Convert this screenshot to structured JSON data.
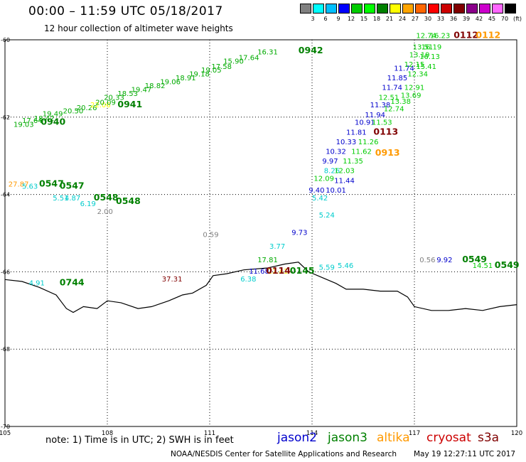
{
  "header": {
    "title": "00:00 – 11:59 UTC 05/18/2017",
    "subtitle": "12 hour collection of altimeter wave heights"
  },
  "legend_scale": {
    "unit": "(ft)",
    "colors": [
      "#808080",
      "#00ffff",
      "#00bfff",
      "#0000ff",
      "#00cc00",
      "#00ff00",
      "#008000",
      "#ffff00",
      "#ffa500",
      "#ff6600",
      "#ff0000",
      "#cc0000",
      "#800000",
      "#8b008b",
      "#cc00cc",
      "#ff66ff",
      "#000000"
    ],
    "labels": [
      "3",
      "6",
      "9",
      "12",
      "15",
      "18",
      "21",
      "24",
      "27",
      "30",
      "33",
      "36",
      "39",
      "42",
      "45",
      "70"
    ]
  },
  "axes": {
    "lon_labels": [
      "105",
      "108",
      "111",
      "114",
      "117",
      "120"
    ],
    "lat_labels": [
      "-60",
      "-62",
      "-64",
      "-66",
      "-68",
      "-70"
    ]
  },
  "map": {
    "lon_range": [
      105,
      120
    ],
    "lat_range": [
      -60,
      -70
    ],
    "coastline": [
      [
        105,
        -66.2
      ],
      [
        105.5,
        -66.25
      ],
      [
        106,
        -66.4
      ],
      [
        106.5,
        -66.6
      ],
      [
        106.8,
        -66.95
      ],
      [
        107,
        -67.05
      ],
      [
        107.3,
        -66.9
      ],
      [
        107.7,
        -66.95
      ],
      [
        108,
        -66.75
      ],
      [
        108.4,
        -66.8
      ],
      [
        108.9,
        -66.95
      ],
      [
        109.3,
        -66.9
      ],
      [
        109.8,
        -66.75
      ],
      [
        110.2,
        -66.6
      ],
      [
        110.5,
        -66.55
      ],
      [
        110.9,
        -66.35
      ],
      [
        111.1,
        -66.1
      ],
      [
        111.5,
        -66.05
      ],
      [
        112,
        -65.95
      ],
      [
        112.7,
        -65.9
      ],
      [
        113.2,
        -65.8
      ],
      [
        113.6,
        -65.75
      ],
      [
        113.9,
        -66.0
      ],
      [
        114.3,
        -66.15
      ],
      [
        114.7,
        -66.3
      ],
      [
        115.0,
        -66.45
      ],
      [
        115.5,
        -66.45
      ],
      [
        116.0,
        -66.5
      ],
      [
        116.5,
        -66.5
      ],
      [
        116.8,
        -66.65
      ],
      [
        117.0,
        -66.9
      ],
      [
        117.5,
        -67.0
      ],
      [
        118,
        -67.0
      ],
      [
        118.5,
        -66.95
      ],
      [
        119,
        -67.0
      ],
      [
        119.5,
        -66.9
      ],
      [
        120,
        -66.85
      ]
    ]
  },
  "wave_labels": [
    {
      "text": "19.03",
      "lon": 105.25,
      "lat": -62.25,
      "color": "#00aa00"
    },
    {
      "text": "17.64",
      "lon": 105.5,
      "lat": -62.15,
      "color": "#00aa00"
    },
    {
      "text": "18.42",
      "lon": 105.85,
      "lat": -62.1,
      "color": "#00aa00"
    },
    {
      "text": "19.49",
      "lon": 106.1,
      "lat": -61.98,
      "color": "#00aa00"
    },
    {
      "text": "20.50",
      "lon": 106.7,
      "lat": -61.9,
      "color": "#00aa00"
    },
    {
      "text": "20.26",
      "lon": 107.1,
      "lat": -61.82,
      "color": "#00aa00"
    },
    {
      "text": "22.06",
      "lon": 107.5,
      "lat": -61.75,
      "color": "#ffff00"
    },
    {
      "text": "20.09",
      "lon": 107.65,
      "lat": -61.68,
      "color": "#00aa00"
    },
    {
      "text": "20.33",
      "lon": 107.9,
      "lat": -61.55,
      "color": "#00aa00"
    },
    {
      "text": "18.53",
      "lon": 108.3,
      "lat": -61.45,
      "color": "#00aa00"
    },
    {
      "text": "19.47",
      "lon": 108.7,
      "lat": -61.35,
      "color": "#00aa00"
    },
    {
      "text": "18.82",
      "lon": 109.1,
      "lat": -61.25,
      "color": "#00aa00"
    },
    {
      "text": "19.06",
      "lon": 109.55,
      "lat": -61.15,
      "color": "#00aa00"
    },
    {
      "text": "18.91",
      "lon": 110.0,
      "lat": -61.05,
      "color": "#00aa00"
    },
    {
      "text": "19.18",
      "lon": 110.4,
      "lat": -60.95,
      "color": "#00aa00"
    },
    {
      "text": "19.05",
      "lon": 110.75,
      "lat": -60.85,
      "color": "#00aa00"
    },
    {
      "text": "17.58",
      "lon": 111.05,
      "lat": -60.75,
      "color": "#00aa00"
    },
    {
      "text": "15.90",
      "lon": 111.4,
      "lat": -60.62,
      "color": "#00aa00"
    },
    {
      "text": "17.64",
      "lon": 111.85,
      "lat": -60.52,
      "color": "#00aa00"
    },
    {
      "text": "16.31",
      "lon": 112.4,
      "lat": -60.38,
      "color": "#00aa00"
    },
    {
      "text": "27.87",
      "lon": 105.1,
      "lat": -63.8,
      "color": "#ff9900"
    },
    {
      "text": "5.63",
      "lon": 105.5,
      "lat": -63.85,
      "color": "#00cccc"
    },
    {
      "text": "5.51",
      "lon": 106.4,
      "lat": -64.15,
      "color": "#00cccc"
    },
    {
      "text": "4.87",
      "lon": 106.75,
      "lat": -64.15,
      "color": "#00cccc"
    },
    {
      "text": "6.19",
      "lon": 107.2,
      "lat": -64.3,
      "color": "#00cccc"
    },
    {
      "text": "2.00",
      "lon": 107.7,
      "lat": -64.5,
      "color": "#808080"
    },
    {
      "text": "0.59",
      "lon": 110.8,
      "lat": -65.1,
      "color": "#808080"
    },
    {
      "text": "9.73",
      "lon": 113.4,
      "lat": -65.05,
      "color": "#0000cc"
    },
    {
      "text": "3.77",
      "lon": 112.75,
      "lat": -65.4,
      "color": "#00cccc"
    },
    {
      "text": "17.81",
      "lon": 112.4,
      "lat": -65.75,
      "color": "#00aa00"
    },
    {
      "text": "11.68",
      "lon": 112.15,
      "lat": -66.05,
      "color": "#0000cc"
    },
    {
      "text": "22.41",
      "lon": 112.7,
      "lat": -66.05,
      "color": "#ffff00"
    },
    {
      "text": "6.38",
      "lon": 111.9,
      "lat": -66.25,
      "color": "#00cccc"
    },
    {
      "text": "37.31",
      "lon": 109.6,
      "lat": -66.25,
      "color": "#800000"
    },
    {
      "text": "4.91",
      "lon": 105.7,
      "lat": -66.35,
      "color": "#00cccc"
    },
    {
      "text": "5.59",
      "lon": 114.2,
      "lat": -65.95,
      "color": "#00cccc"
    },
    {
      "text": "5.46",
      "lon": 114.75,
      "lat": -65.9,
      "color": "#00cccc"
    },
    {
      "text": "0.56",
      "lon": 117.15,
      "lat": -65.75,
      "color": "#808080"
    },
    {
      "text": "9.92",
      "lon": 117.65,
      "lat": -65.75,
      "color": "#0000cc"
    },
    {
      "text": "14.51",
      "lon": 118.7,
      "lat": -65.9,
      "color": "#00cc00"
    },
    {
      "text": "5.24",
      "lon": 114.2,
      "lat": -64.6,
      "color": "#00cccc"
    },
    {
      "text": "5.42",
      "lon": 114.0,
      "lat": -64.15,
      "color": "#00cccc"
    },
    {
      "text": "9.40",
      "lon": 113.9,
      "lat": -63.95,
      "color": "#0000cc"
    },
    {
      "text": "10.01",
      "lon": 114.4,
      "lat": -63.95,
      "color": "#0000cc"
    },
    {
      "text": "12.09",
      "lon": 114.05,
      "lat": -63.65,
      "color": "#00cc00"
    },
    {
      "text": "11.44",
      "lon": 114.65,
      "lat": -63.7,
      "color": "#0000cc"
    },
    {
      "text": "8.26",
      "lon": 114.35,
      "lat": -63.45,
      "color": "#00cccc"
    },
    {
      "text": "12.03",
      "lon": 114.65,
      "lat": -63.45,
      "color": "#00cc00"
    },
    {
      "text": "9.97",
      "lon": 114.3,
      "lat": -63.2,
      "color": "#0000cc"
    },
    {
      "text": "11.35",
      "lon": 114.9,
      "lat": -63.2,
      "color": "#00cc00"
    },
    {
      "text": "10.32",
      "lon": 114.4,
      "lat": -62.95,
      "color": "#0000cc"
    },
    {
      "text": "11.62",
      "lon": 115.15,
      "lat": -62.95,
      "color": "#00cc00"
    },
    {
      "text": "10.33",
      "lon": 114.7,
      "lat": -62.7,
      "color": "#0000cc"
    },
    {
      "text": "11.26",
      "lon": 115.35,
      "lat": -62.7,
      "color": "#00cc00"
    },
    {
      "text": "11.81",
      "lon": 115.0,
      "lat": -62.45,
      "color": "#0000cc"
    },
    {
      "text": "10.91",
      "lon": 115.25,
      "lat": -62.2,
      "color": "#0000cc"
    },
    {
      "text": "11.53",
      "lon": 115.75,
      "lat": -62.2,
      "color": "#00cc00"
    },
    {
      "text": "11.94",
      "lon": 115.55,
      "lat": -62.0,
      "color": "#0000cc"
    },
    {
      "text": "11.38",
      "lon": 115.7,
      "lat": -61.75,
      "color": "#0000cc"
    },
    {
      "text": "12.74",
      "lon": 116.1,
      "lat": -61.85,
      "color": "#00cc00"
    },
    {
      "text": "12.51",
      "lon": 115.95,
      "lat": -61.55,
      "color": "#00cc00"
    },
    {
      "text": "13.38",
      "lon": 116.3,
      "lat": -61.65,
      "color": "#00cc00"
    },
    {
      "text": "11.74",
      "lon": 116.05,
      "lat": -61.3,
      "color": "#0000cc"
    },
    {
      "text": "13.69",
      "lon": 116.6,
      "lat": -61.5,
      "color": "#00cc00"
    },
    {
      "text": "11.85",
      "lon": 116.2,
      "lat": -61.05,
      "color": "#0000cc"
    },
    {
      "text": "12.91",
      "lon": 116.7,
      "lat": -61.3,
      "color": "#00cc00"
    },
    {
      "text": "11.74",
      "lon": 116.4,
      "lat": -60.8,
      "color": "#0000cc"
    },
    {
      "text": "12.34",
      "lon": 116.8,
      "lat": -60.95,
      "color": "#00cc00"
    },
    {
      "text": "12.15",
      "lon": 116.7,
      "lat": -60.7,
      "color": "#00cc00"
    },
    {
      "text": "15.41",
      "lon": 117.05,
      "lat": -60.75,
      "color": "#00cc00"
    },
    {
      "text": "13.19",
      "lon": 116.85,
      "lat": -60.45,
      "color": "#00cc00"
    },
    {
      "text": "16.13",
      "lon": 117.15,
      "lat": -60.5,
      "color": "#00cc00"
    },
    {
      "text": "13.51",
      "lon": 116.95,
      "lat": -60.25,
      "color": "#00cc00"
    },
    {
      "text": "16.19",
      "lon": 117.2,
      "lat": -60.25,
      "color": "#00cc00"
    },
    {
      "text": "12.74",
      "lon": 117.05,
      "lat": -59.95,
      "color": "#00cc00"
    },
    {
      "text": "16.23",
      "lon": 117.45,
      "lat": -59.95,
      "color": "#00cc00"
    }
  ],
  "time_labels": [
    {
      "text": "0940",
      "lon": 106.05,
      "lat": -62.2,
      "color": "#008000"
    },
    {
      "text": "0941",
      "lon": 108.3,
      "lat": -61.75,
      "color": "#008000"
    },
    {
      "text": "0942",
      "lon": 113.6,
      "lat": -60.35,
      "color": "#008000"
    },
    {
      "text": "0547",
      "lon": 106.0,
      "lat": -63.8,
      "color": "#008000"
    },
    {
      "text": "0547",
      "lon": 106.6,
      "lat": -63.85,
      "color": "#008000"
    },
    {
      "text": "0548",
      "lon": 107.6,
      "lat": -64.15,
      "color": "#008000"
    },
    {
      "text": "0548",
      "lon": 108.25,
      "lat": -64.25,
      "color": "#008000"
    },
    {
      "text": "0744",
      "lon": 106.6,
      "lat": -66.35,
      "color": "#008000"
    },
    {
      "text": "0114",
      "lon": 112.65,
      "lat": -66.05,
      "color": "#800000"
    },
    {
      "text": "0145",
      "lon": 113.35,
      "lat": -66.05,
      "color": "#008000"
    },
    {
      "text": "0549",
      "lon": 118.4,
      "lat": -65.75,
      "color": "#008000"
    },
    {
      "text": "0549",
      "lon": 119.35,
      "lat": -65.9,
      "color": "#008000"
    },
    {
      "text": "0113",
      "lon": 115.8,
      "lat": -62.45,
      "color": "#800000"
    },
    {
      "text": "0913",
      "lon": 115.85,
      "lat": -63.0,
      "color": "#ff9900"
    },
    {
      "text": "0112",
      "lon": 118.15,
      "lat": -59.95,
      "color": "#800000"
    },
    {
      "text": "0112",
      "lon": 118.8,
      "lat": -59.95,
      "color": "#ff9900"
    }
  ],
  "note": "note: 1) Time is in UTC; 2) SWH is in feet",
  "satellites": [
    {
      "name": "jason2",
      "color": "#0000cc"
    },
    {
      "name": "jason3",
      "color": "#008000"
    },
    {
      "name": "altika",
      "color": "#ff9900"
    },
    {
      "name": "cryosat",
      "color": "#cc0000"
    },
    {
      "name": "s3a",
      "color": "#800000"
    }
  ],
  "credit": "NOAA/NESDIS Center for Satellite Applications and Research",
  "timestamp": "May 19 12:27:11 UTC 2017"
}
